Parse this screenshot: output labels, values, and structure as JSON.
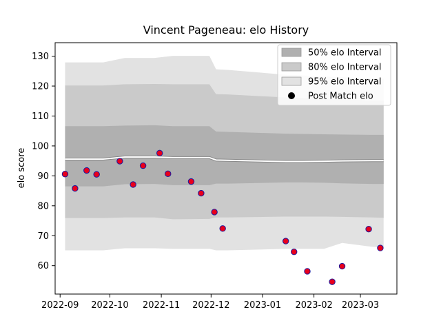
{
  "chart_data": {
    "type": "scatter",
    "title": "Vincent Pageneau: elo History",
    "xlabel": "",
    "ylabel": "elo score",
    "xlim": [
      "2022-08-29",
      "2023-03-23"
    ],
    "ylim": [
      50.5,
      134.5
    ],
    "x_ticks": [
      "2022-09",
      "2022-10",
      "2022-11",
      "2022-12",
      "2023-01",
      "2023-02",
      "2023-03"
    ],
    "y_ticks": [
      60,
      70,
      80,
      90,
      100,
      110,
      120,
      130
    ],
    "legend_position": "top-right",
    "grid": false,
    "legend": [
      {
        "label": "50% elo Interval",
        "kind": "band",
        "color": "#b0b0b0"
      },
      {
        "label": "80% elo Interval",
        "kind": "band",
        "color": "#cacaca"
      },
      {
        "label": "95% elo Interval",
        "kind": "band",
        "color": "#e2e2e2"
      },
      {
        "label": "Post Match elo",
        "kind": "marker",
        "color": "#000000"
      }
    ],
    "bands": {
      "x": [
        "2022-09-04",
        "2022-09-17",
        "2022-09-27",
        "2022-10-10",
        "2022-10-28",
        "2022-11-08",
        "2022-11-30",
        "2022-12-04",
        "2022-12-11",
        "2023-01-15",
        "2023-01-25",
        "2023-02-07",
        "2023-02-18",
        "2023-03-08",
        "2023-03-15"
      ],
      "p50_low": [
        86.5,
        86.5,
        86.5,
        87.2,
        87.3,
        86.9,
        86.9,
        87.4,
        87.4,
        87.8,
        87.8,
        87.7,
        87.5,
        87.3,
        87.3
      ],
      "p50_high": [
        106.6,
        106.6,
        106.6,
        106.8,
        106.9,
        106.6,
        106.6,
        104.8,
        104.7,
        104.1,
        104.0,
        103.9,
        103.8,
        103.7,
        103.7
      ],
      "p80_low": [
        75.9,
        75.9,
        75.9,
        76.1,
        76.1,
        75.5,
        75.6,
        76.1,
        76.1,
        76.4,
        76.4,
        76.4,
        76.3,
        76.1,
        76.0
      ],
      "p80_high": [
        120.2,
        120.2,
        120.2,
        120.6,
        120.7,
        120.6,
        120.6,
        117.3,
        117.2,
        116.2,
        116.0,
        115.6,
        115.5,
        115.2,
        115.2
      ],
      "p95_low": [
        65.1,
        65.1,
        65.1,
        65.8,
        65.8,
        65.6,
        65.6,
        65.1,
        65.1,
        65.6,
        65.6,
        65.6,
        67.6,
        66.3,
        66.1
      ],
      "p95_high": [
        127.9,
        127.9,
        127.9,
        129.4,
        129.4,
        130.1,
        130.1,
        125.6,
        125.4,
        123.8,
        123.6,
        123.2,
        123.0,
        122.5,
        122.5
      ],
      "median": [
        95.6,
        95.6,
        95.6,
        96.3,
        96.3,
        96.1,
        96.1,
        95.3,
        95.2,
        94.8,
        94.8,
        94.9,
        95.0,
        95.1,
        95.1
      ]
    },
    "points": {
      "x": [
        "2022-09-04",
        "2022-09-10",
        "2022-09-17",
        "2022-09-23",
        "2022-10-07",
        "2022-10-15",
        "2022-10-21",
        "2022-10-31",
        "2022-11-05",
        "2022-11-19",
        "2022-11-25",
        "2022-12-03",
        "2022-12-08",
        "2023-01-15",
        "2023-01-20",
        "2023-01-28",
        "2023-02-12",
        "2023-02-18",
        "2023-03-06",
        "2023-03-13"
      ],
      "y": [
        90.6,
        85.8,
        91.8,
        90.5,
        94.9,
        87.1,
        93.4,
        97.6,
        90.7,
        88.1,
        84.2,
        77.9,
        72.4,
        68.2,
        64.6,
        58.1,
        54.6,
        59.8,
        72.2,
        65.9
      ]
    },
    "style": {
      "marker_face": "#e8001c",
      "marker_edge": "#1a1aa0",
      "band50": "#b0b0b0",
      "band80": "#cacaca",
      "band95": "#e2e2e2",
      "median_line": "#ffffff",
      "median_outline": "#888888"
    }
  }
}
